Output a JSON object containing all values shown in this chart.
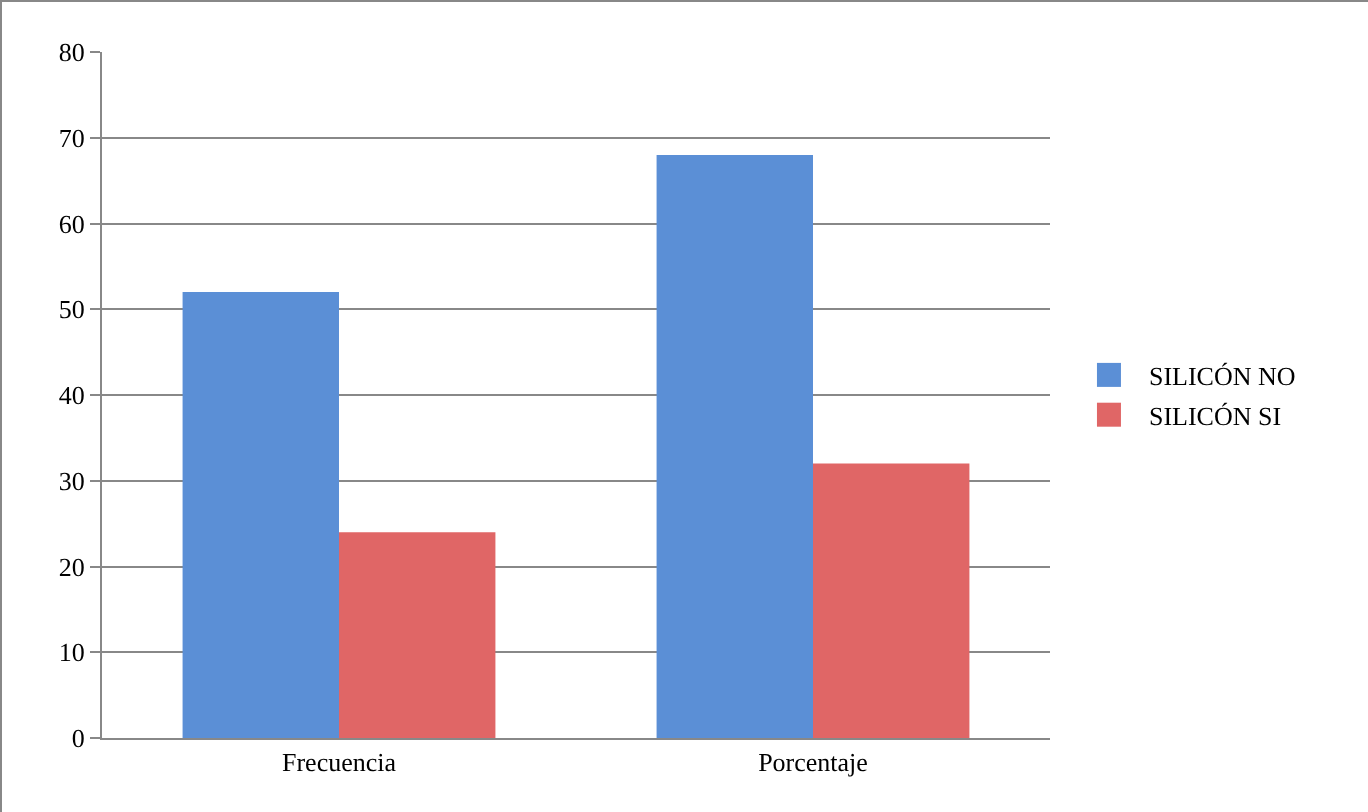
{
  "chart_data": {
    "type": "bar",
    "categories": [
      "Frecuencia",
      "Porcentaje"
    ],
    "series": [
      {
        "name": "SILICÓN NO",
        "color": "#5b8fd6",
        "values": [
          52,
          68
        ]
      },
      {
        "name": "SILICÓN SI",
        "color": "#e06666",
        "values": [
          24,
          32
        ]
      }
    ],
    "ylim": [
      0,
      80
    ],
    "yticks": [
      0,
      10,
      20,
      30,
      40,
      50,
      60,
      70,
      80
    ],
    "grid": "y",
    "legend": "right"
  }
}
